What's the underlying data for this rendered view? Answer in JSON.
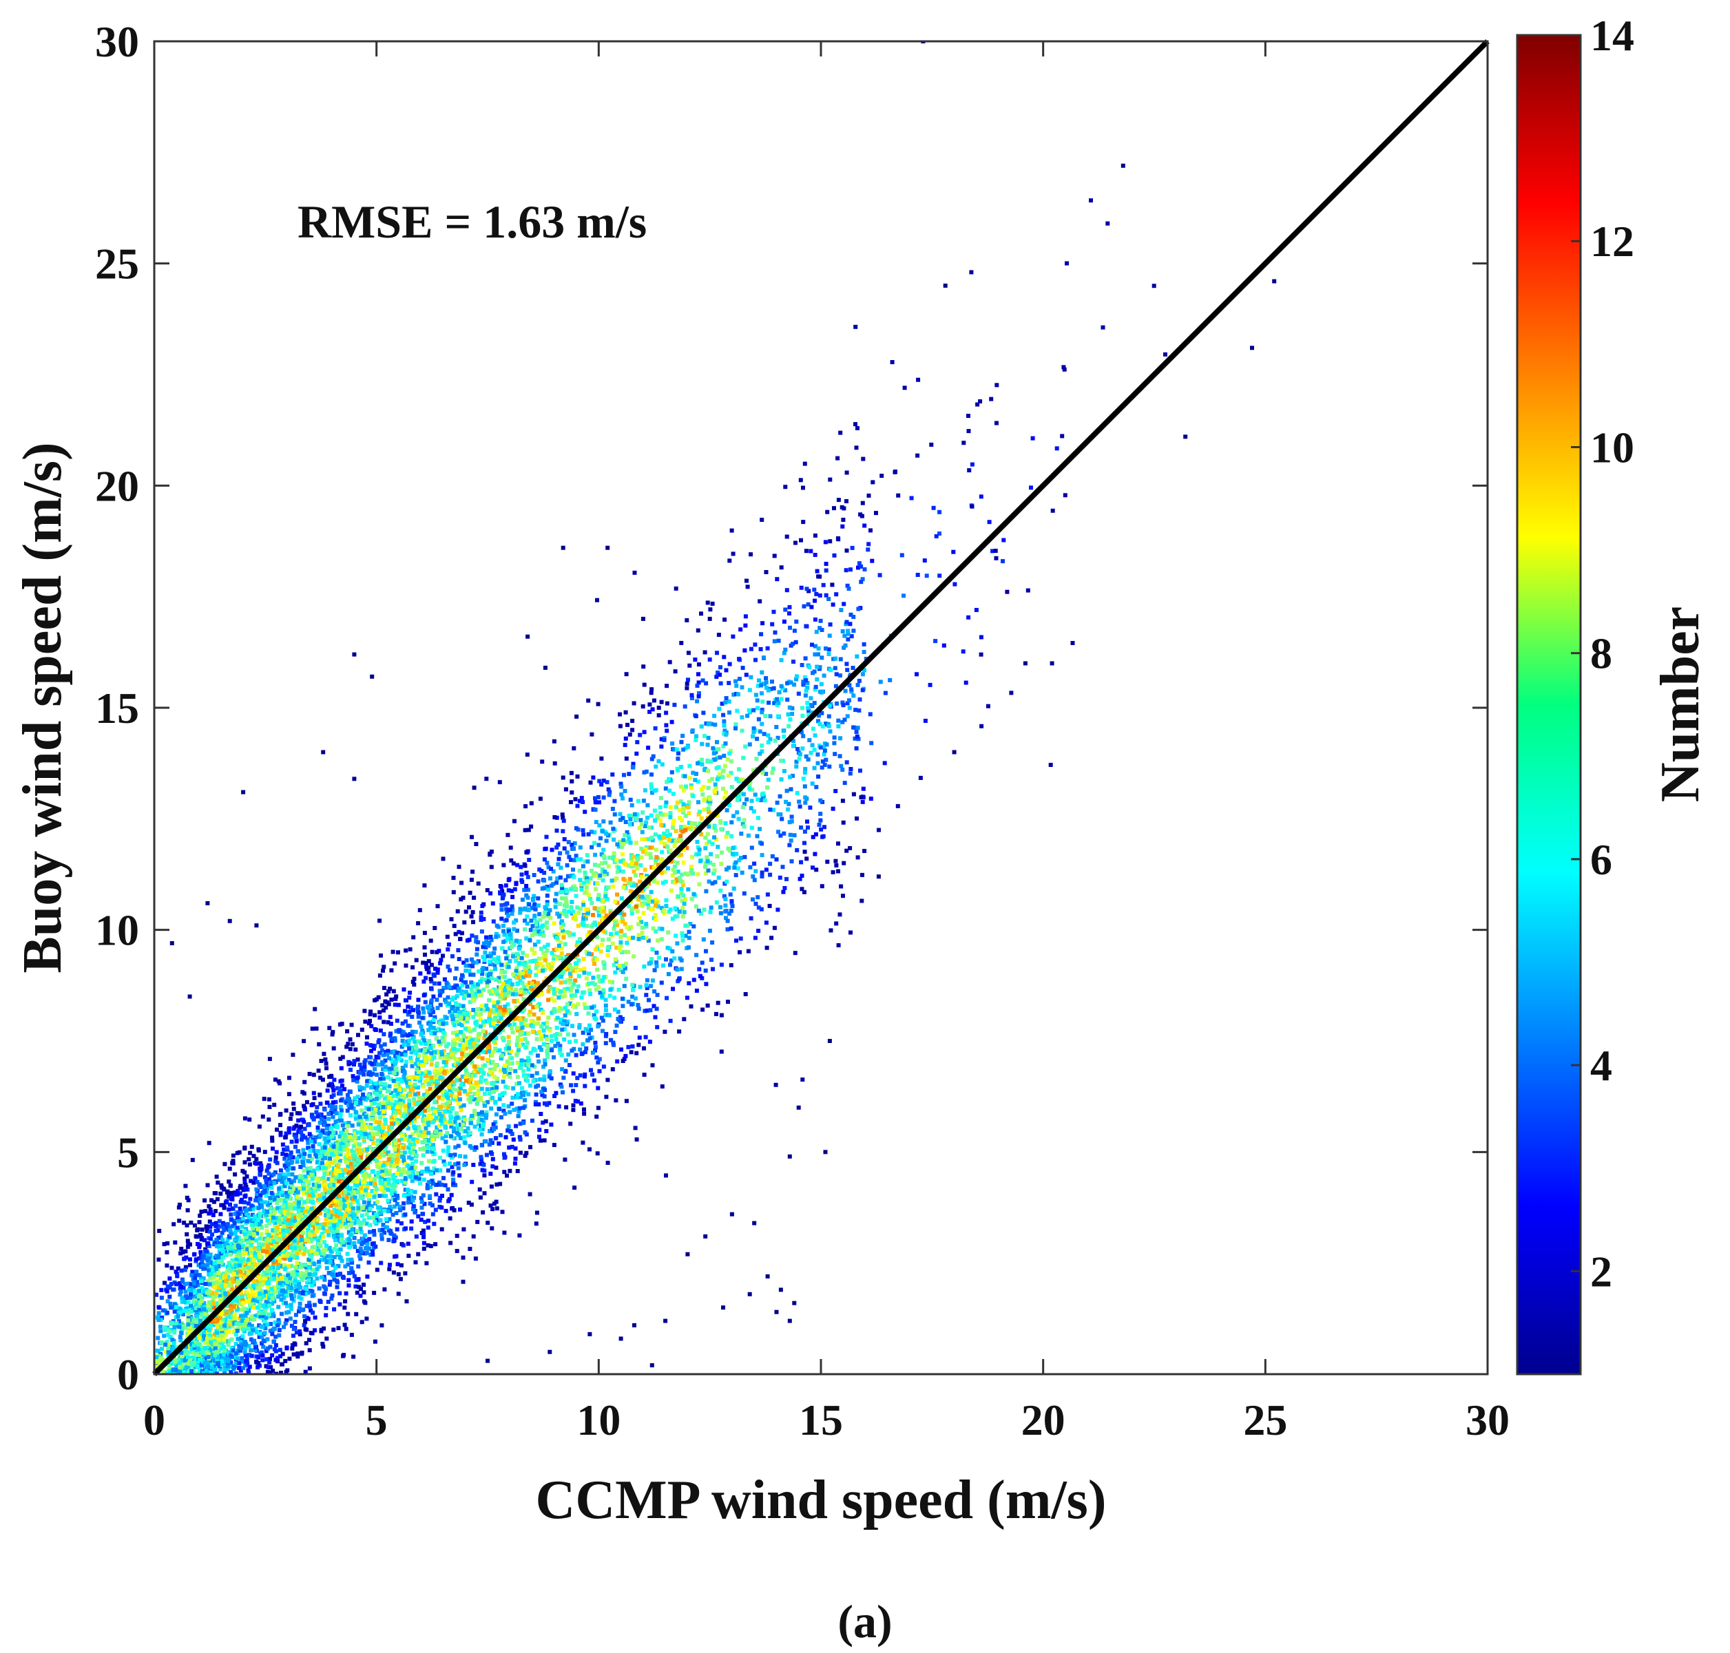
{
  "chart_data": {
    "type": "scatter",
    "subtype": "density-scatter",
    "title": "",
    "xlabel": "CCMP wind speed (m/s)",
    "ylabel": "Buoy wind speed (m/s)",
    "xlim": [
      0,
      30
    ],
    "ylim": [
      0,
      30
    ],
    "xticks": [
      "0",
      "5",
      "10",
      "15",
      "20",
      "25",
      "30"
    ],
    "yticks": [
      "0",
      "5",
      "10",
      "15",
      "20",
      "25",
      "30"
    ],
    "grid": false,
    "reference_line": {
      "label": "1:1 line",
      "x": [
        0,
        30
      ],
      "y": [
        0,
        30
      ],
      "color": "#000000"
    },
    "annotation": "RMSE = 1.63 m/s",
    "colorbar": {
      "label": "Number",
      "range": [
        1,
        14
      ],
      "ticks": [
        "2",
        "4",
        "6",
        "8",
        "10",
        "12",
        "14"
      ],
      "colormap": "jet"
    },
    "density_band": {
      "description": "points concentrated along the 1:1 line, spread widening with speed",
      "center": [
        {
          "x": 1,
          "y": 1.3
        },
        {
          "x": 3,
          "y": 3.2
        },
        {
          "x": 5,
          "y": 5.2
        },
        {
          "x": 7,
          "y": 7.0
        },
        {
          "x": 10,
          "y": 10.0
        },
        {
          "x": 13,
          "y": 13.0
        },
        {
          "x": 15,
          "y": 15.0
        },
        {
          "x": 18,
          "y": 18.0
        },
        {
          "x": 21,
          "y": 21.0
        }
      ],
      "x_range": [
        0,
        25
      ],
      "peak_count": 11
    },
    "outliers": [
      {
        "x": 17.3,
        "y": 30.0
      },
      {
        "x": 21.8,
        "y": 27.2
      },
      {
        "x": 17.8,
        "y": 24.5
      },
      {
        "x": 25.2,
        "y": 24.6
      },
      {
        "x": 24.7,
        "y": 23.1
      },
      {
        "x": 23.2,
        "y": 21.1
      },
      {
        "x": 9.2,
        "y": 18.6
      },
      {
        "x": 10.2,
        "y": 18.6
      },
      {
        "x": 4.5,
        "y": 16.2
      },
      {
        "x": 4.9,
        "y": 15.7
      },
      {
        "x": 8.4,
        "y": 16.6
      },
      {
        "x": 8.8,
        "y": 15.9
      },
      {
        "x": 3.8,
        "y": 14.0
      },
      {
        "x": 4.5,
        "y": 13.4
      },
      {
        "x": 2.0,
        "y": 13.1
      },
      {
        "x": 20.2,
        "y": 16.0
      },
      {
        "x": 19.6,
        "y": 16.0
      },
      {
        "x": 18.0,
        "y": 14.0
      },
      {
        "x": 16.3,
        "y": 11.2
      },
      {
        "x": 14.5,
        "y": 6.0
      },
      {
        "x": 15.2,
        "y": 7.5
      },
      {
        "x": 15.1,
        "y": 5.0
      },
      {
        "x": 14.3,
        "y": 4.9
      },
      {
        "x": 13.5,
        "y": 3.4
      },
      {
        "x": 13.0,
        "y": 3.6
      },
      {
        "x": 12.0,
        "y": 2.7
      },
      {
        "x": 12.4,
        "y": 3.1
      },
      {
        "x": 13.4,
        "y": 1.8
      },
      {
        "x": 13.8,
        "y": 2.2
      },
      {
        "x": 14.0,
        "y": 1.4
      },
      {
        "x": 14.3,
        "y": 1.2
      },
      {
        "x": 14.1,
        "y": 1.9
      },
      {
        "x": 14.4,
        "y": 1.6
      },
      {
        "x": 12.8,
        "y": 1.5
      },
      {
        "x": 11.2,
        "y": 0.2
      },
      {
        "x": 10.5,
        "y": 0.8
      },
      {
        "x": 10.8,
        "y": 1.1
      },
      {
        "x": 11.5,
        "y": 1.2
      },
      {
        "x": 9.8,
        "y": 0.9
      },
      {
        "x": 8.9,
        "y": 0.5
      },
      {
        "x": 7.5,
        "y": 0.3
      },
      {
        "x": 0.4,
        "y": 9.7
      },
      {
        "x": 0.8,
        "y": 8.5
      },
      {
        "x": 1.2,
        "y": 10.6
      },
      {
        "x": 1.7,
        "y": 10.2
      },
      {
        "x": 2.3,
        "y": 10.1
      },
      {
        "x": 6.5,
        "y": 11.6
      },
      {
        "x": 9.5,
        "y": 14.8
      },
      {
        "x": 11.0,
        "y": 17.0
      },
      {
        "x": 12.5,
        "y": 17.0
      },
      {
        "x": 7.2,
        "y": 13.2
      }
    ],
    "panel_label": "(a)"
  }
}
